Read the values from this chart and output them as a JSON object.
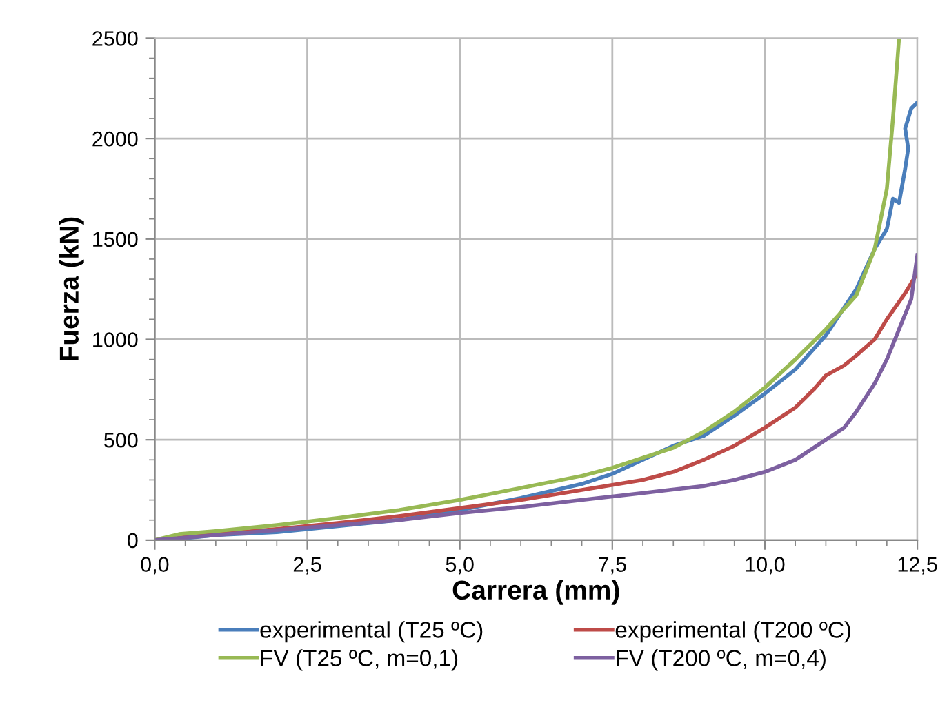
{
  "chart_data": {
    "type": "line",
    "xlabel": "Carrera (mm)",
    "ylabel": "Fuerza (kN)",
    "xlim": [
      0,
      12.5
    ],
    "ylim": [
      0,
      2500
    ],
    "xticks": [
      {
        "value": 0,
        "label": "0,0"
      },
      {
        "value": 2.5,
        "label": "2,5"
      },
      {
        "value": 5,
        "label": "5,0"
      },
      {
        "value": 7.5,
        "label": "7,5"
      },
      {
        "value": 10,
        "label": "10,0"
      },
      {
        "value": 12.5,
        "label": "12,5"
      }
    ],
    "yticks": [
      0,
      500,
      1000,
      1500,
      2000,
      2500
    ],
    "grid": true,
    "legend": "bottom",
    "marker": "none",
    "line_style": "solid",
    "series": [
      {
        "name": "experimental (T25 ºC)",
        "color": "#4a7ebb",
        "x": [
          0,
          0.5,
          1,
          2,
          3,
          4,
          5,
          6,
          7,
          7.5,
          8,
          8.5,
          9,
          9.5,
          10,
          10.5,
          11,
          11.5,
          11.8,
          12,
          12.1,
          12.2,
          12.3,
          12.35,
          12.3,
          12.4,
          12.5
        ],
        "values": [
          0,
          10,
          25,
          40,
          70,
          100,
          150,
          210,
          280,
          330,
          400,
          470,
          520,
          620,
          730,
          850,
          1020,
          1250,
          1450,
          1550,
          1700,
          1680,
          1850,
          1950,
          2050,
          2150,
          2180
        ]
      },
      {
        "name": "experimental (T200 ºC)",
        "color": "#be4b48",
        "x": [
          0,
          1,
          2,
          3,
          4,
          5,
          6,
          7,
          8,
          8.5,
          9,
          9.5,
          10,
          10.5,
          10.8,
          11,
          11.3,
          11.5,
          11.8,
          12,
          12.3,
          12.5
        ],
        "values": [
          0,
          30,
          55,
          85,
          120,
          160,
          200,
          250,
          300,
          340,
          400,
          470,
          560,
          660,
          750,
          820,
          870,
          920,
          1000,
          1100,
          1230,
          1330
        ]
      },
      {
        "name": "FV (T25 ºC, m=0,1)",
        "color": "#98b954",
        "x": [
          0,
          0.4,
          1,
          2,
          3,
          4,
          5,
          6,
          7,
          7.5,
          8,
          8.5,
          9,
          9.5,
          10,
          10.5,
          11,
          11.5,
          11.8,
          12,
          12.1,
          12.2
        ],
        "values": [
          0,
          30,
          45,
          75,
          110,
          150,
          200,
          260,
          320,
          360,
          410,
          460,
          540,
          640,
          760,
          900,
          1050,
          1220,
          1450,
          1750,
          2100,
          2500
        ]
      },
      {
        "name": "FV (T200 ºC, m=0,4)",
        "color": "#7d60a0",
        "x": [
          0,
          1,
          2,
          3,
          4,
          5,
          6,
          7,
          8,
          9,
          9.5,
          10,
          10.5,
          11,
          11.3,
          11.5,
          11.8,
          12,
          12.2,
          12.4,
          12.5
        ],
        "values": [
          0,
          25,
          50,
          75,
          100,
          135,
          165,
          200,
          235,
          270,
          300,
          340,
          400,
          500,
          560,
          640,
          780,
          900,
          1050,
          1200,
          1420
        ]
      }
    ]
  }
}
